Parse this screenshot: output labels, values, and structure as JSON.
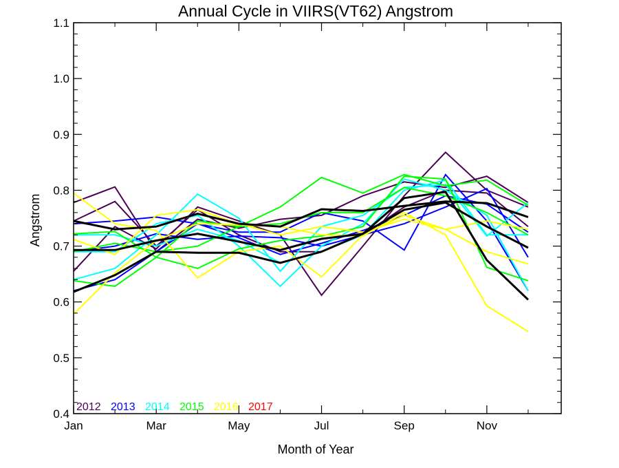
{
  "chart_data": {
    "type": "line",
    "title": "Annual Cycle in VIIRS(VT62) Angstrom",
    "xlabel": "Month of Year",
    "ylabel": "Angstrom",
    "xlim": [
      1,
      12.8
    ],
    "ylim": [
      0.4,
      1.1
    ],
    "x": [
      1,
      2,
      3,
      4,
      5,
      6,
      7,
      8,
      9,
      10,
      11,
      12
    ],
    "x_ticks": [
      {
        "value": 1,
        "label": "Jan"
      },
      {
        "value": 3,
        "label": "Mar"
      },
      {
        "value": 5,
        "label": "May"
      },
      {
        "value": 7,
        "label": "Jul"
      },
      {
        "value": 9,
        "label": "Sep"
      },
      {
        "value": 11,
        "label": "Nov"
      }
    ],
    "y_ticks": [
      {
        "value": 0.4,
        "label": "0.4"
      },
      {
        "value": 0.5,
        "label": "0.5"
      },
      {
        "value": 0.6,
        "label": "0.6"
      },
      {
        "value": 0.7,
        "label": "0.7"
      },
      {
        "value": 0.8,
        "label": "0.8"
      },
      {
        "value": 0.9,
        "label": "0.9"
      },
      {
        "value": 1.0,
        "label": "1.0"
      },
      {
        "value": 1.1,
        "label": "1.1"
      }
    ],
    "grid": false,
    "legend_position": "bottom-left",
    "legend": [
      {
        "label": "2012",
        "color": "#4b0055"
      },
      {
        "label": "2013",
        "color": "#0000ff"
      },
      {
        "label": "2014",
        "color": "#00ffff"
      },
      {
        "label": "2015",
        "color": "#00ff00"
      },
      {
        "label": "2016",
        "color": "#ffff00"
      },
      {
        "label": "2017",
        "color": "#ff0000"
      }
    ],
    "series": [
      {
        "color": "#4b0055",
        "width": 2,
        "values": [
          0.655,
          0.735,
          0.695,
          0.77,
          0.745,
          0.72,
          0.612,
          0.7,
          0.79,
          0.868,
          0.8,
          0.77
        ]
      },
      {
        "color": "#4b0055",
        "width": 2,
        "values": [
          0.778,
          0.806,
          0.69,
          0.748,
          0.732,
          0.748,
          0.755,
          0.79,
          0.815,
          0.805,
          0.825,
          0.778
        ]
      },
      {
        "color": "#4b0055",
        "width": 2,
        "values": [
          0.745,
          0.78,
          0.7,
          0.765,
          0.72,
          0.69,
          0.69,
          0.72,
          0.77,
          0.8,
          0.795,
          0.735
        ]
      },
      {
        "color": "#0000ff",
        "width": 2,
        "values": [
          0.74,
          0.745,
          0.752,
          0.74,
          0.725,
          0.725,
          0.76,
          0.745,
          0.693,
          0.828,
          0.745,
          0.62
        ]
      },
      {
        "color": "#0000ff",
        "width": 2,
        "values": [
          0.69,
          0.7,
          0.722,
          0.712,
          0.718,
          0.715,
          0.7,
          0.72,
          0.74,
          0.77,
          0.803,
          0.68
        ]
      },
      {
        "color": "#0000ff",
        "width": 2,
        "values": [
          0.62,
          0.64,
          0.69,
          0.74,
          0.715,
          0.685,
          0.705,
          0.728,
          0.755,
          0.79,
          0.775,
          0.725
        ]
      },
      {
        "color": "#00ffff",
        "width": 2,
        "values": [
          0.64,
          0.66,
          0.72,
          0.793,
          0.75,
          0.655,
          0.735,
          0.755,
          0.805,
          0.81,
          0.718,
          0.778
        ]
      },
      {
        "color": "#00ffff",
        "width": 2,
        "values": [
          0.69,
          0.69,
          0.74,
          0.755,
          0.7,
          0.628,
          0.7,
          0.74,
          0.82,
          0.8,
          0.755,
          0.62
        ]
      },
      {
        "color": "#00ffff",
        "width": 2,
        "values": [
          0.72,
          0.72,
          0.7,
          0.73,
          0.71,
          0.67,
          0.69,
          0.72,
          0.8,
          0.818,
          0.72,
          0.72
        ]
      },
      {
        "color": "#00ff00",
        "width": 2,
        "values": [
          0.722,
          0.726,
          0.68,
          0.66,
          0.695,
          0.71,
          0.718,
          0.735,
          0.825,
          0.82,
          0.662,
          0.638
        ]
      },
      {
        "color": "#00ff00",
        "width": 2,
        "values": [
          0.638,
          0.628,
          0.68,
          0.745,
          0.735,
          0.77,
          0.823,
          0.795,
          0.828,
          0.808,
          0.818,
          0.773
        ]
      },
      {
        "color": "#00ff00",
        "width": 2,
        "values": [
          0.69,
          0.705,
          0.69,
          0.7,
          0.735,
          0.74,
          0.76,
          0.76,
          0.805,
          0.79,
          0.76,
          0.72
        ]
      },
      {
        "color": "#ffff00",
        "width": 2,
        "values": [
          0.795,
          0.74,
          0.728,
          0.643,
          0.69,
          0.7,
          0.645,
          0.72,
          0.755,
          0.73,
          0.745,
          0.73
        ]
      },
      {
        "color": "#ffff00",
        "width": 2,
        "values": [
          0.578,
          0.652,
          0.71,
          0.74,
          0.738,
          0.735,
          0.72,
          0.718,
          0.76,
          0.72,
          0.593,
          0.547
        ]
      },
      {
        "color": "#ffff00",
        "width": 2,
        "values": [
          0.712,
          0.685,
          0.755,
          0.765,
          0.74,
          0.72,
          0.735,
          0.725,
          0.748,
          0.73,
          0.69,
          0.668
        ]
      },
      {
        "color": "#000000",
        "width": 3,
        "values": [
          0.745,
          0.73,
          0.735,
          0.758,
          0.74,
          0.735,
          0.766,
          0.763,
          0.772,
          0.78,
          0.777,
          0.752
        ]
      },
      {
        "color": "#000000",
        "width": 3,
        "values": [
          0.693,
          0.693,
          0.71,
          0.722,
          0.708,
          0.693,
          0.713,
          0.722,
          0.765,
          0.778,
          0.735,
          0.697
        ]
      },
      {
        "color": "#000000",
        "width": 3,
        "values": [
          0.618,
          0.648,
          0.69,
          0.688,
          0.688,
          0.67,
          0.69,
          0.722,
          0.786,
          0.797,
          0.675,
          0.604
        ]
      }
    ]
  }
}
